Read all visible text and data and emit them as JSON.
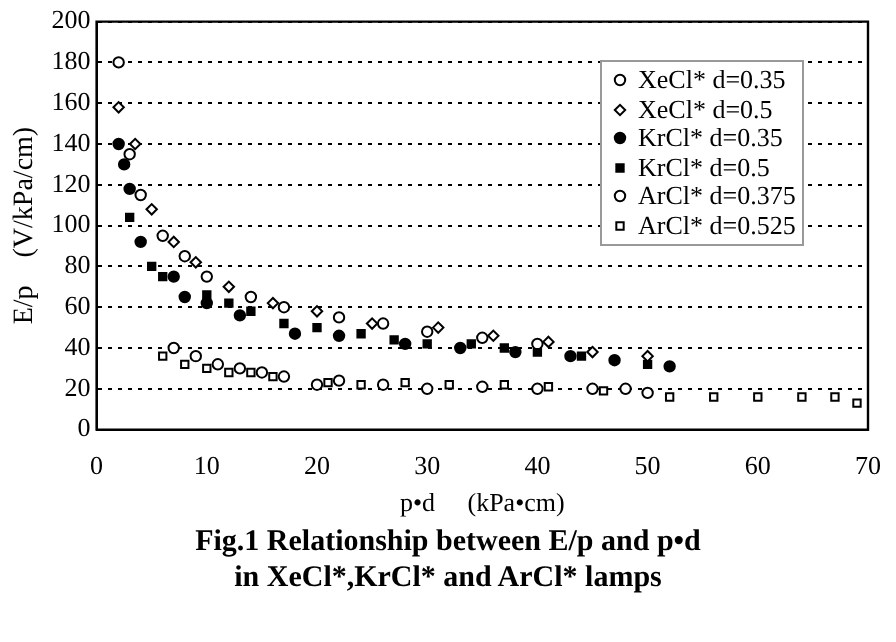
{
  "chart_data": {
    "type": "scatter",
    "title": "Fig.1  Relationship between E/p and p•d\nin XeCl*,KrCl* and ArCl* lamps",
    "xlabel": "p•d     (kPa•cm)",
    "ylabel": "E/p    (V/kPa/cm)",
    "xlim": [
      0,
      70
    ],
    "xticks": [
      0,
      10,
      20,
      30,
      40,
      50,
      60,
      70
    ],
    "ylim": [
      0,
      200
    ],
    "yticks": [
      0,
      20,
      40,
      60,
      80,
      100,
      120,
      140,
      160,
      180,
      200
    ],
    "grid": "y",
    "legend": "top right",
    "series": [
      {
        "name": "XeCl* d=0.35",
        "color": "#ffffff",
        "marker": "circle",
        "x": [
          2,
          3,
          4,
          6,
          8,
          10,
          14,
          17,
          22,
          26,
          30,
          35,
          40
        ],
        "values": [
          180,
          135,
          115,
          95,
          85,
          75,
          65,
          60,
          55,
          52,
          48,
          45,
          42
        ]
      },
      {
        "name": "XeCl* d=0.5",
        "color": "#ffffff",
        "marker": "diamond",
        "x": [
          2,
          3.5,
          5,
          7,
          9,
          12,
          16,
          20,
          25,
          31,
          36,
          41,
          45,
          50
        ],
        "values": [
          158,
          140,
          108,
          92,
          82,
          70,
          62,
          58,
          52,
          50,
          46,
          43,
          38,
          36
        ]
      },
      {
        "name": "KrCl* d=0.35",
        "color": "#000000",
        "marker": "circle",
        "x": [
          2,
          2.5,
          3,
          4,
          7,
          8,
          10,
          13,
          18,
          22,
          28,
          33,
          38,
          43,
          47,
          52
        ],
        "values": [
          140,
          130,
          118,
          92,
          75,
          65,
          62,
          56,
          47,
          46,
          42,
          40,
          38,
          36,
          34,
          31
        ]
      },
      {
        "name": "KrCl* d=0.5",
        "color": "#000000",
        "marker": "square",
        "x": [
          3,
          5,
          6,
          10,
          12,
          14,
          17,
          20,
          24,
          27,
          30,
          34,
          37,
          40,
          44,
          50
        ],
        "values": [
          104,
          80,
          75,
          66,
          62,
          58,
          52,
          50,
          47,
          44,
          42,
          42,
          40,
          38,
          36,
          32
        ]
      },
      {
        "name": "ArCl* d=0.375",
        "color": "#ffffff",
        "marker": "circle",
        "x": [
          7,
          9,
          11,
          13,
          15,
          17,
          20,
          22,
          26,
          30,
          35,
          40,
          45,
          48,
          50
        ],
        "values": [
          40,
          36,
          32,
          30,
          28,
          26,
          22,
          24,
          22,
          20,
          21,
          20,
          20,
          20,
          18
        ]
      },
      {
        "name": "ArCl* d=0.525",
        "color": "#ffffff",
        "marker": "square",
        "x": [
          6,
          8,
          10,
          12,
          14,
          16,
          21,
          24,
          28,
          32,
          37,
          41,
          46,
          52,
          56,
          60,
          64,
          67,
          69
        ],
        "values": [
          36,
          32,
          30,
          28,
          28,
          26,
          23,
          22,
          23,
          22,
          22,
          21,
          19,
          16,
          16,
          16,
          16,
          16,
          13
        ]
      }
    ]
  }
}
